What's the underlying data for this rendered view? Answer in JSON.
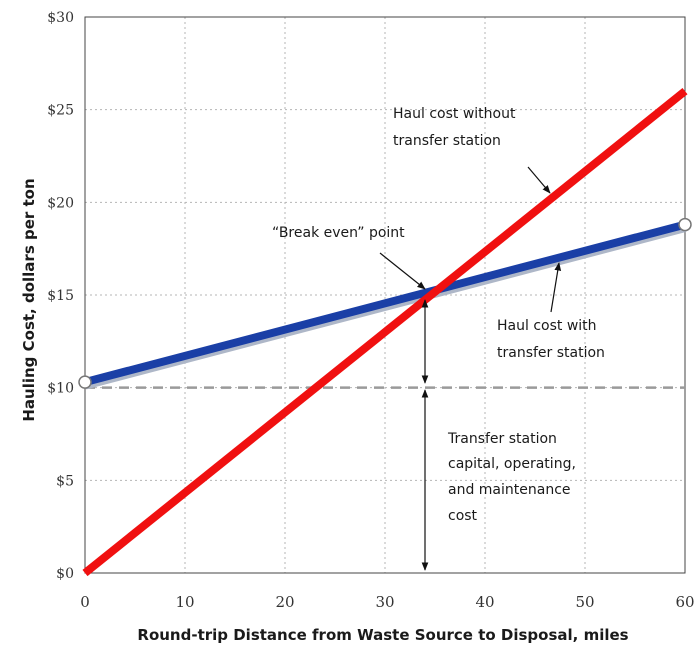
{
  "chart_data": {
    "type": "line",
    "xlabel": "Round-trip Distance from Waste Source to Disposal, miles",
    "ylabel": "Hauling Cost, dollars per ton",
    "xlim": [
      0,
      60
    ],
    "ylim": [
      0,
      30
    ],
    "x_ticks": [
      "0",
      "10",
      "20",
      "30",
      "40",
      "50",
      "60"
    ],
    "y_ticks": [
      "$0",
      "$5",
      "$10",
      "$15",
      "$20",
      "$25",
      "$30"
    ],
    "grid": true,
    "series": [
      {
        "name": "Haul cost without transfer station",
        "color": "#f01010",
        "x": [
          0,
          60
        ],
        "y": [
          0,
          26
        ]
      },
      {
        "name": "Haul cost with transfer station",
        "color": "#1a3fa6",
        "x": [
          0,
          60
        ],
        "y": [
          10.3,
          18.8
        ]
      }
    ],
    "reference_line": {
      "y": 10,
      "style": "dashed",
      "color": "#9a9a9a"
    },
    "annotations": {
      "without_lines": [
        "Haul cost without",
        "transfer station"
      ],
      "with_lines": [
        "Haul cost with",
        "transfer station"
      ],
      "break_even": "“Break even” point",
      "capital_lines": [
        "Transfer station",
        "capital, operating,",
        "and maintenance",
        "cost"
      ]
    }
  }
}
